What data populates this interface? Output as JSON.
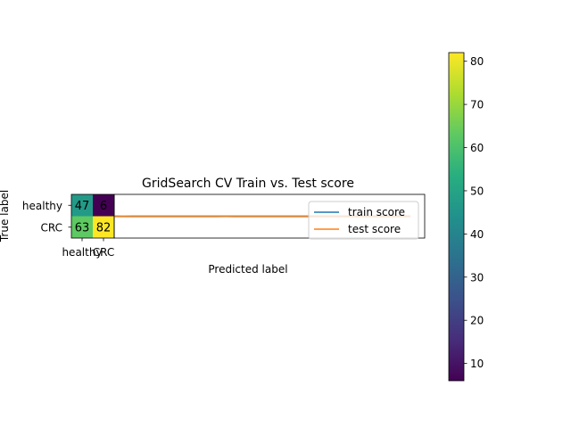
{
  "chart_data": [
    {
      "type": "heatmap",
      "xlabel": "Predicted label",
      "ylabel": "True label",
      "row_labels": [
        "healthy",
        "CRC"
      ],
      "col_labels": [
        "healthy",
        "CRC"
      ],
      "matrix": [
        [
          47,
          6
        ],
        [
          63,
          82
        ]
      ],
      "colormap": "viridis",
      "colorbar": {
        "min": 6,
        "max": 82,
        "ticks": [
          10,
          20,
          30,
          40,
          50,
          60,
          70,
          80
        ]
      }
    },
    {
      "type": "line",
      "title": "GridSearch CV Train vs. Test score",
      "legend_placement": "upper-right",
      "x": [
        0,
        1,
        2,
        3,
        4,
        5,
        6,
        7,
        8,
        9,
        10,
        11,
        12,
        13,
        14,
        15,
        16,
        17,
        18,
        19,
        20,
        21,
        22,
        23,
        24,
        25,
        26,
        27,
        28,
        29,
        30,
        31,
        32
      ],
      "series": [
        {
          "name": "train score",
          "color": "#1f77b4",
          "values": [
            0.845,
            0.84,
            0.845,
            0.842,
            0.846,
            0.84,
            0.845,
            0.842,
            0.846,
            0.84,
            0.845,
            0.842,
            0.846,
            0.84,
            0.845,
            0.842,
            0.846,
            0.84,
            0.845,
            0.842,
            0.846,
            0.84,
            0.845,
            0.842,
            0.846,
            0.84,
            0.845,
            0.842,
            0.846,
            0.84,
            0.845,
            0.842,
            0.846
          ]
        },
        {
          "name": "test score",
          "color": "#ff7f0e",
          "values": [
            0.86,
            0.855,
            0.86,
            0.858,
            0.862,
            0.857,
            0.86,
            0.858,
            0.862,
            0.857,
            0.86,
            0.858,
            0.862,
            0.857,
            0.86,
            0.858,
            0.862,
            0.857,
            0.86,
            0.858,
            0.862,
            0.857,
            0.86,
            0.858,
            0.862,
            0.857,
            0.86,
            0.858,
            0.862,
            0.857,
            0.86,
            0.858,
            0.862
          ]
        }
      ],
      "ylim": [
        0.0,
        1.7
      ]
    }
  ]
}
